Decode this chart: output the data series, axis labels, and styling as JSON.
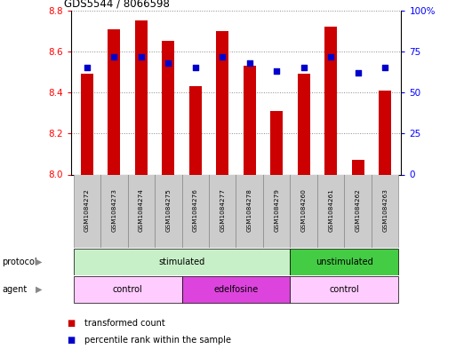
{
  "title": "GDS5544 / 8066598",
  "samples": [
    "GSM1084272",
    "GSM1084273",
    "GSM1084274",
    "GSM1084275",
    "GSM1084276",
    "GSM1084277",
    "GSM1084278",
    "GSM1084279",
    "GSM1084260",
    "GSM1084261",
    "GSM1084262",
    "GSM1084263"
  ],
  "bar_values": [
    8.49,
    8.71,
    8.75,
    8.65,
    8.43,
    8.7,
    8.53,
    8.31,
    8.49,
    8.72,
    8.07,
    8.41
  ],
  "percentile_values": [
    65,
    72,
    72,
    68,
    65,
    72,
    68,
    63,
    65,
    72,
    62,
    65
  ],
  "bar_color": "#cc0000",
  "dot_color": "#0000cc",
  "left_ylim": [
    8.0,
    8.8
  ],
  "right_ylim": [
    0,
    100
  ],
  "left_yticks": [
    8.0,
    8.2,
    8.4,
    8.6,
    8.8
  ],
  "right_yticks": [
    0,
    25,
    50,
    75,
    100
  ],
  "right_yticklabels": [
    "0",
    "25",
    "50",
    "75",
    "100%"
  ],
  "protocol_groups": [
    {
      "label": "stimulated",
      "start": 0,
      "end": 8,
      "color": "#c8f0c8"
    },
    {
      "label": "unstimulated",
      "start": 8,
      "end": 12,
      "color": "#44cc44"
    }
  ],
  "agent_groups": [
    {
      "label": "control",
      "start": 0,
      "end": 4,
      "color": "#ffccff"
    },
    {
      "label": "edelfosine",
      "start": 4,
      "end": 8,
      "color": "#dd44dd"
    },
    {
      "label": "control",
      "start": 8,
      "end": 12,
      "color": "#ffccff"
    }
  ],
  "legend_bar_label": "transformed count",
  "legend_dot_label": "percentile rank within the sample",
  "bar_width": 0.45,
  "background_color": "#ffffff",
  "grid_color": "#888888",
  "label_row_color": "#cccccc",
  "label_row_border": "#888888",
  "protocol_label": "protocol",
  "agent_label": "agent",
  "arrow_color": "#888888"
}
